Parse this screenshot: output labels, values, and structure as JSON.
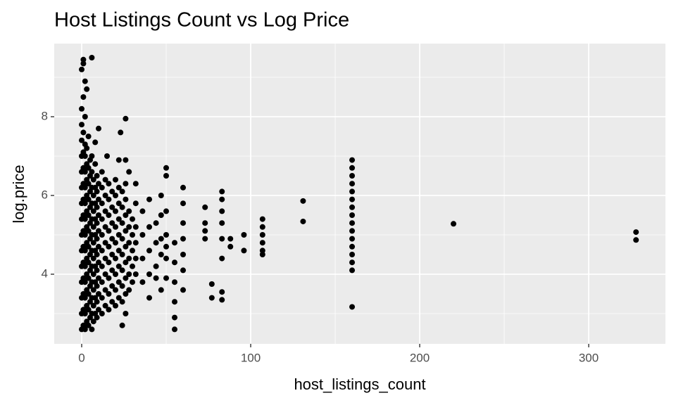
{
  "chart_data": {
    "type": "scatter",
    "title": "Host Listings Count vs Log Price",
    "x_label": "host_listings_count",
    "y_label": "log.price",
    "color": "#000000",
    "grid": true,
    "xlim": [
      -16.25,
      345.4
    ],
    "ylim": [
      2.232,
      9.857
    ],
    "xticks": [
      0,
      100,
      200,
      300
    ],
    "yticks": [
      4,
      6,
      8
    ],
    "x_minor_grid": [
      50,
      150,
      250
    ],
    "y_minor_grid": [
      3,
      5,
      7,
      9
    ],
    "x": [
      0,
      0,
      0,
      0,
      0,
      0,
      0,
      0,
      0,
      0,
      0,
      0,
      0,
      0,
      1,
      1,
      1,
      1,
      1,
      1,
      1,
      1,
      1,
      1,
      1,
      1,
      1,
      2,
      2,
      2,
      2,
      2,
      2,
      2,
      2,
      2,
      2,
      2,
      2,
      2,
      3,
      3,
      3,
      3,
      3,
      3,
      3,
      3,
      3,
      3,
      3,
      3,
      4,
      4,
      4,
      4,
      4,
      4,
      4,
      4,
      4,
      4,
      4,
      4,
      5,
      5,
      5,
      5,
      5,
      5,
      5,
      5,
      5,
      5,
      5,
      6,
      6,
      6,
      6,
      6,
      6,
      6,
      6,
      6,
      6,
      6,
      6,
      7,
      7,
      7,
      7,
      7,
      7,
      7,
      7,
      7,
      7,
      8,
      8,
      8,
      8,
      8,
      8,
      8,
      8,
      8,
      8,
      9,
      9,
      9,
      9,
      9,
      9,
      9,
      9,
      9,
      9,
      10,
      10,
      10,
      10,
      10,
      10,
      10,
      10,
      10,
      12,
      12,
      12,
      12,
      12,
      12,
      12,
      12,
      12,
      12,
      14,
      14,
      14,
      14,
      14,
      14,
      14,
      14,
      14,
      16,
      16,
      16,
      16,
      16,
      16,
      16,
      16,
      16,
      18,
      18,
      18,
      18,
      18,
      18,
      18,
      18,
      20,
      20,
      20,
      20,
      20,
      20,
      20,
      20,
      20,
      22,
      22,
      22,
      22,
      22,
      22,
      22,
      22,
      24,
      24,
      24,
      24,
      24,
      24,
      24,
      24,
      24,
      26,
      26,
      26,
      26,
      26,
      26,
      26,
      26,
      26,
      28,
      28,
      28,
      28,
      28,
      28,
      30,
      30,
      30,
      30,
      30,
      32,
      32,
      32,
      32,
      32,
      0,
      1,
      1,
      6,
      2,
      3,
      1,
      0,
      2,
      26,
      23,
      10,
      8,
      15,
      22,
      26,
      28,
      32,
      36,
      36,
      36,
      36,
      40,
      40,
      40,
      40,
      40,
      44,
      44,
      44,
      44,
      47,
      47,
      47,
      47,
      47,
      50,
      50,
      50,
      50,
      50,
      50,
      50,
      55,
      55,
      55,
      55,
      55,
      55,
      60,
      60,
      60,
      60,
      60,
      60,
      60,
      73,
      73,
      73,
      73,
      77,
      77,
      83,
      83,
      83,
      83,
      83,
      83,
      83,
      83,
      88,
      88,
      96,
      96,
      107,
      107,
      107,
      107,
      107,
      107,
      131,
      131,
      160,
      160,
      160,
      160,
      160,
      160,
      160,
      160,
      160,
      160,
      160,
      160,
      160,
      160,
      160,
      160,
      220,
      328,
      328
    ],
    "values": [
      2.6,
      3.0,
      3.4,
      3.8,
      4.2,
      4.6,
      5.0,
      5.4,
      5.8,
      6.2,
      6.6,
      7.0,
      7.4,
      7.8,
      2.7,
      3.1,
      3.5,
      3.9,
      4.3,
      4.7,
      5.1,
      5.5,
      5.9,
      6.3,
      6.7,
      7.1,
      7.6,
      2.6,
      3.0,
      3.4,
      3.8,
      4.2,
      4.6,
      5.0,
      5.4,
      5.8,
      6.2,
      6.6,
      7.0,
      7.3,
      2.8,
      3.2,
      3.6,
      4.0,
      4.4,
      4.8,
      5.2,
      5.6,
      6.0,
      6.4,
      6.8,
      7.2,
      2.7,
      3.1,
      3.5,
      3.9,
      4.3,
      4.7,
      5.1,
      5.5,
      5.9,
      6.3,
      6.7,
      7.5,
      2.9,
      3.3,
      3.7,
      4.1,
      4.5,
      4.9,
      5.3,
      5.7,
      6.1,
      6.5,
      6.9,
      2.6,
      3.0,
      3.4,
      3.8,
      4.2,
      4.6,
      5.0,
      5.4,
      5.8,
      6.2,
      6.6,
      7.0,
      2.8,
      3.2,
      3.6,
      4.0,
      4.4,
      4.8,
      5.2,
      5.6,
      6.0,
      6.4,
      3.0,
      3.4,
      3.8,
      4.2,
      4.6,
      5.0,
      5.4,
      5.8,
      6.2,
      6.8,
      2.9,
      3.3,
      3.7,
      4.1,
      4.5,
      4.9,
      5.3,
      5.7,
      6.1,
      6.5,
      3.1,
      3.5,
      3.9,
      4.3,
      4.7,
      5.1,
      5.5,
      5.9,
      6.3,
      3.0,
      3.4,
      3.8,
      4.2,
      4.6,
      5.0,
      5.4,
      5.8,
      6.2,
      6.6,
      3.2,
      3.6,
      4.0,
      4.4,
      4.8,
      5.2,
      5.6,
      6.0,
      6.4,
      3.1,
      3.5,
      3.9,
      4.3,
      4.7,
      5.1,
      5.5,
      5.9,
      6.3,
      3.3,
      3.7,
      4.1,
      4.5,
      4.9,
      5.3,
      5.7,
      6.1,
      3.2,
      3.6,
      4.0,
      4.4,
      4.8,
      5.2,
      5.6,
      6.0,
      6.4,
      3.4,
      3.8,
      4.2,
      4.6,
      5.0,
      5.4,
      5.8,
      6.2,
      2.7,
      3.3,
      3.7,
      4.1,
      4.5,
      4.9,
      5.3,
      5.7,
      6.1,
      3.0,
      3.5,
      3.9,
      4.3,
      4.7,
      5.1,
      5.5,
      5.9,
      6.3,
      3.6,
      4.0,
      4.4,
      4.8,
      5.2,
      5.6,
      3.8,
      4.2,
      4.6,
      5.0,
      5.4,
      4.0,
      4.4,
      4.8,
      5.2,
      5.8,
      9.2,
      9.45,
      9.35,
      9.5,
      8.9,
      8.7,
      8.5,
      8.2,
      8.0,
      7.95,
      7.6,
      7.7,
      7.35,
      7.0,
      6.9,
      6.9,
      6.6,
      6.3,
      5.6,
      5.0,
      4.4,
      3.8,
      5.9,
      5.2,
      4.6,
      4.0,
      3.4,
      5.3,
      4.8,
      4.2,
      3.9,
      6.0,
      5.5,
      4.9,
      4.5,
      3.6,
      6.7,
      6.5,
      5.6,
      5.0,
      4.7,
      4.4,
      3.9,
      4.8,
      4.3,
      3.8,
      3.3,
      2.9,
      2.6,
      6.2,
      5.8,
      5.3,
      4.9,
      4.5,
      4.1,
      3.6,
      5.7,
      5.3,
      5.1,
      4.9,
      3.75,
      3.4,
      6.1,
      5.9,
      5.6,
      5.3,
      4.9,
      4.4,
      3.55,
      3.35,
      4.9,
      4.7,
      5.0,
      4.6,
      5.4,
      5.2,
      5.0,
      4.8,
      4.6,
      4.5,
      5.86,
      5.34,
      6.9,
      6.7,
      6.5,
      6.3,
      6.1,
      5.9,
      5.7,
      5.5,
      5.3,
      5.1,
      4.9,
      4.7,
      4.5,
      4.3,
      4.1,
      3.17,
      5.28,
      5.07,
      4.87
    ]
  }
}
